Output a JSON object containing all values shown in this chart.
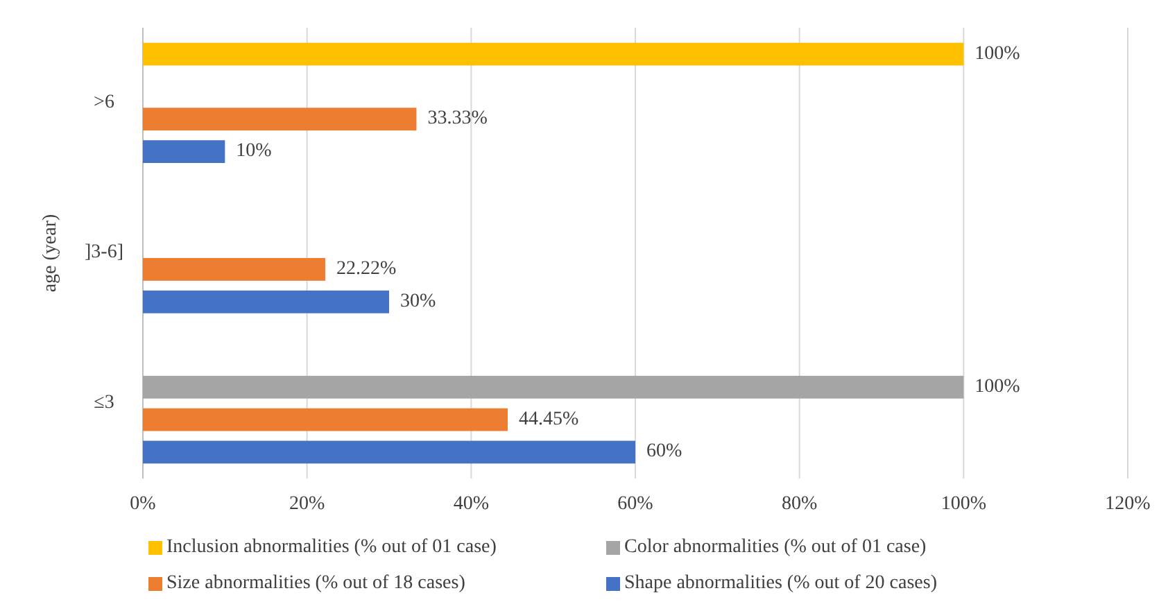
{
  "chart_data": {
    "type": "bar",
    "orientation": "horizontal",
    "ylabel": "age (year)",
    "categories": [
      ">6",
      "]3-6]",
      "≤3"
    ],
    "series": [
      {
        "name": "Inclusion abnormalities (% out of 01 case)",
        "color": "#ffc000",
        "values": [
          100,
          null,
          null
        ],
        "value_labels": [
          "100%",
          null,
          null
        ]
      },
      {
        "name": "Color abnormalities (% out of 01 case)",
        "color": "#a5a5a5",
        "values": [
          null,
          null,
          100
        ],
        "value_labels": [
          null,
          null,
          "100%"
        ]
      },
      {
        "name": "Size abnormalities (% out of 18 cases)",
        "color": "#ed7d31",
        "values": [
          33.33,
          22.22,
          44.45
        ],
        "value_labels": [
          "33.33%",
          "22.22%",
          "44.45%"
        ]
      },
      {
        "name": "Shape abnormalities (% out of 20 cases)",
        "color": "#4472c4",
        "values": [
          10,
          30,
          60
        ],
        "value_labels": [
          "10%",
          "30%",
          "60%"
        ]
      }
    ],
    "xlim": [
      0,
      120
    ],
    "xticks": [
      {
        "value": 0,
        "label": "0%"
      },
      {
        "value": 20,
        "label": "20%"
      },
      {
        "value": 40,
        "label": "40%"
      },
      {
        "value": 60,
        "label": "60%"
      },
      {
        "value": 80,
        "label": "80%"
      },
      {
        "value": 100,
        "label": "100%"
      },
      {
        "value": 120,
        "label": "120%"
      }
    ],
    "grid": "x",
    "legend": "bottom"
  }
}
